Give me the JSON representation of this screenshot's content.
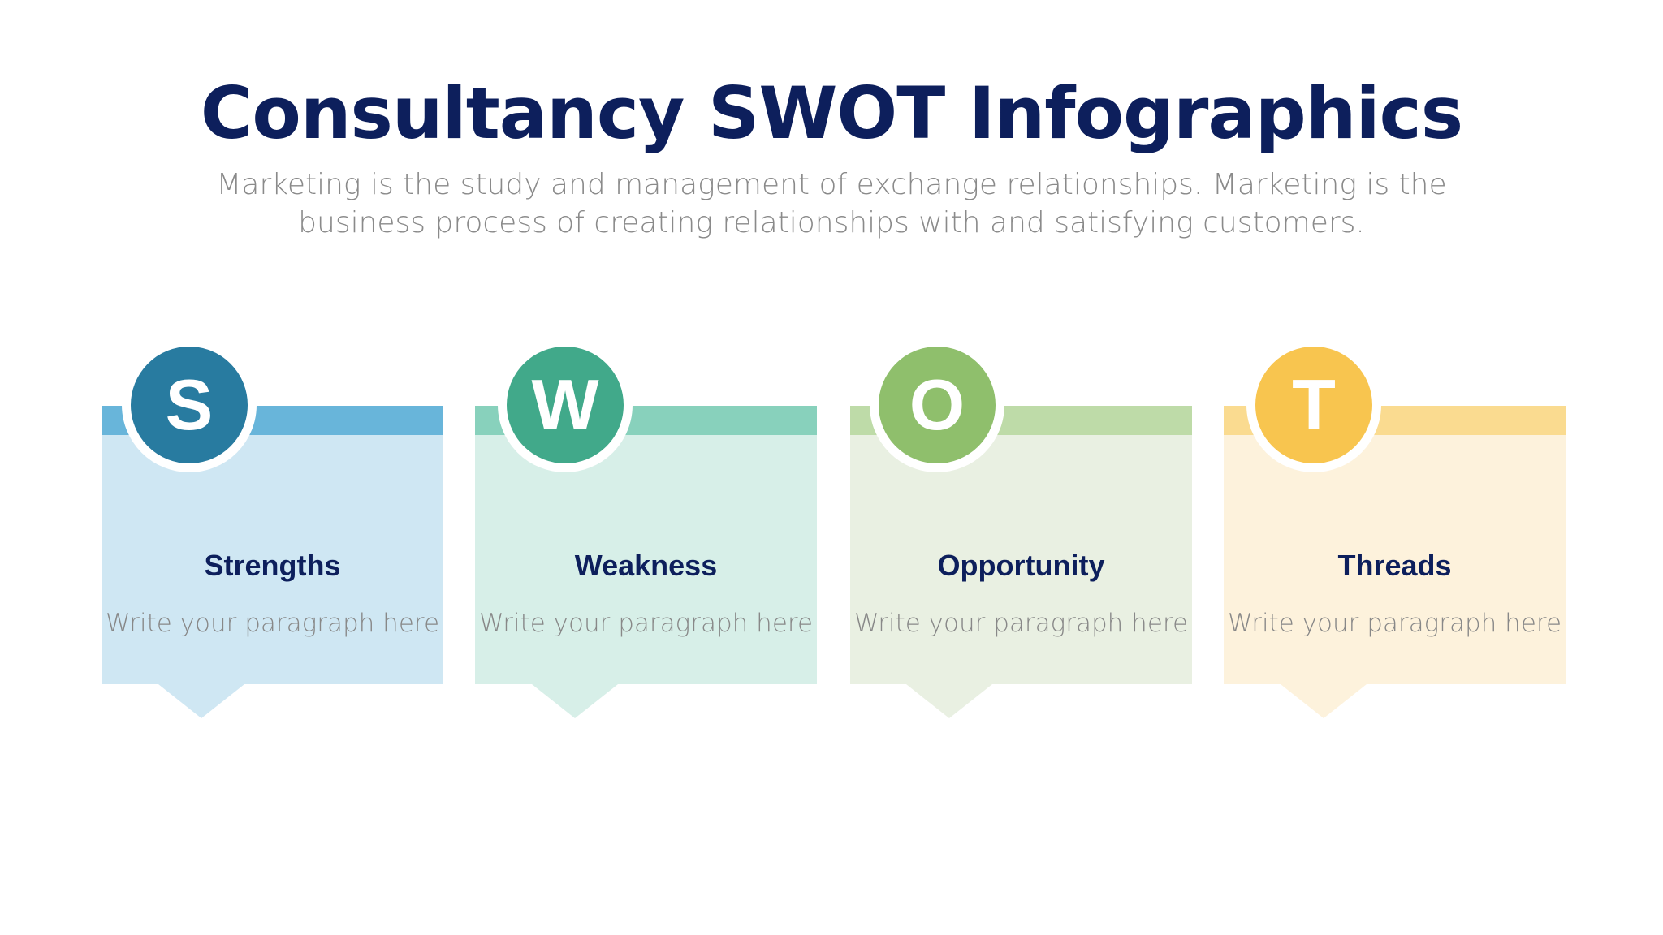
{
  "title": "Consultancy SWOT Infographics",
  "subtitle": "Marketing is the study and management of exchange relationships. Marketing is the business process of creating relationships with and satisfying customers.",
  "cards": [
    {
      "letter": "S",
      "title": "Strengths",
      "text": "Write your paragraph here",
      "circle_color": "#287BA0",
      "bar_color": "#68B5DA",
      "bg_color": "#CFE7F3"
    },
    {
      "letter": "W",
      "title": "Weakness",
      "text": "Write your paragraph here",
      "circle_color": "#41A98A",
      "bar_color": "#88D1BC",
      "bg_color": "#D7EFE8"
    },
    {
      "letter": "O",
      "title": "Opportunity",
      "text": "Write your paragraph here",
      "circle_color": "#8FBF6C",
      "bar_color": "#BEDBA8",
      "bg_color": "#E9F0E2"
    },
    {
      "letter": "T",
      "title": "Threads",
      "text": "Write your paragraph here",
      "circle_color": "#F8C54F",
      "bar_color": "#FADB90",
      "bg_color": "#FDF2DC"
    }
  ]
}
